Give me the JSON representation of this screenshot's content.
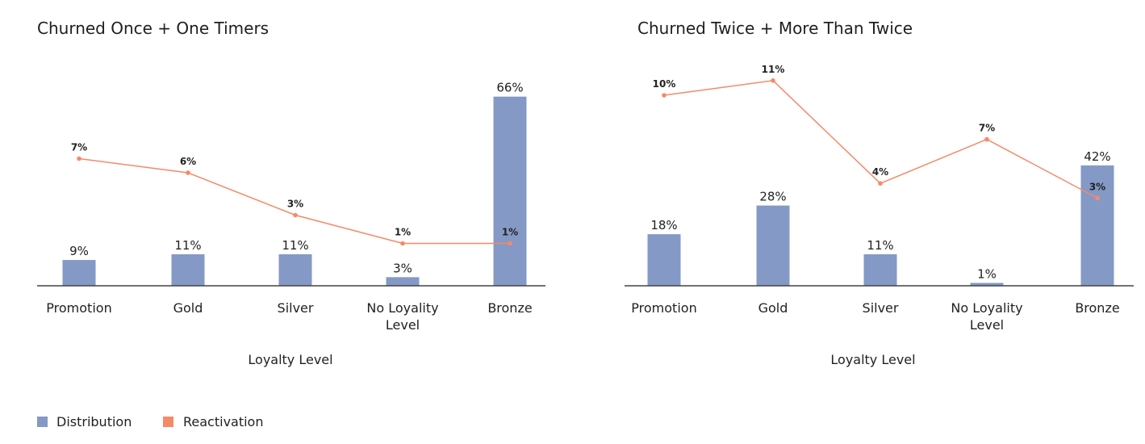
{
  "legend": {
    "items": [
      {
        "label": "Distribution",
        "color": "#8499c5"
      },
      {
        "label": "Reactivation",
        "color": "#f58a68"
      }
    ]
  },
  "chart_data": [
    {
      "type": "bar",
      "title": "Churned Once + One Timers",
      "xlabel": "Loyalty Level",
      "categories": [
        "Promotion",
        "Gold",
        "Silver",
        "No Loyality\nLevel",
        "Bronze"
      ],
      "series": [
        {
          "name": "Distribution",
          "kind": "bar",
          "color": "#8499c5",
          "values": [
            9,
            11,
            11,
            3,
            66
          ],
          "labels": [
            "9%",
            "11%",
            "11%",
            "3%",
            "66%"
          ]
        },
        {
          "name": "Reactivation",
          "kind": "line",
          "color": "#f58a68",
          "values": [
            7,
            6,
            3,
            1,
            1
          ],
          "labels": [
            "7%",
            "6%",
            "3%",
            "1%",
            "1%"
          ]
        }
      ]
    },
    {
      "type": "bar",
      "title": "Churned Twice + More Than Twice",
      "xlabel": "Loyalty Level",
      "categories": [
        "Promotion",
        "Gold",
        "Silver",
        "No Loyality\nLevel",
        "Bronze"
      ],
      "series": [
        {
          "name": "Distribution",
          "kind": "bar",
          "color": "#8499c5",
          "values": [
            18,
            28,
            11,
            1,
            42
          ],
          "labels": [
            "18%",
            "28%",
            "11%",
            "1%",
            "42%"
          ]
        },
        {
          "name": "Reactivation",
          "kind": "line",
          "color": "#f58a68",
          "values": [
            10,
            11,
            4,
            7,
            3
          ],
          "labels": [
            "10%",
            "11%",
            "4%",
            "7%",
            "3%"
          ]
        }
      ]
    }
  ]
}
